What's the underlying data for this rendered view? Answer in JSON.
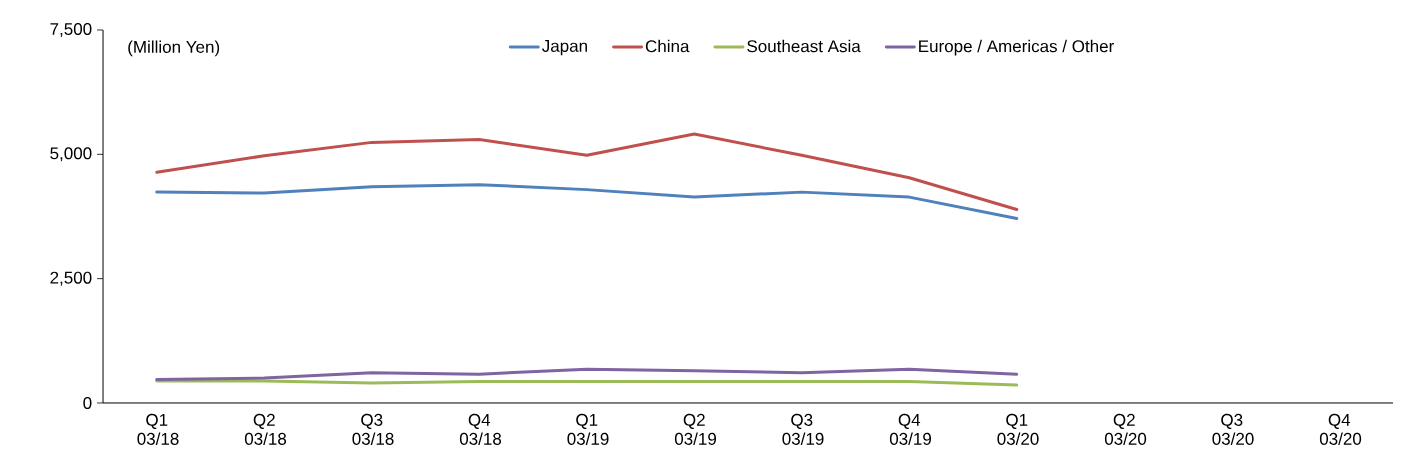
{
  "chart_data": {
    "type": "line",
    "ylabel": "(Million Yen)",
    "categories": [
      "Q1 03/18",
      "Q2 03/18",
      "Q3 03/18",
      "Q4 03/18",
      "Q1 03/19",
      "Q2 03/19",
      "Q3 03/19",
      "Q4 03/19",
      "Q1 03/20",
      "Q2 03/20",
      "Q3 03/20",
      "Q4 03/20"
    ],
    "series": [
      {
        "name": "Japan",
        "color": "#4f81bd",
        "values": [
          4240,
          4220,
          4350,
          4390,
          4290,
          4140,
          4240,
          4140,
          3710,
          null,
          null,
          null
        ]
      },
      {
        "name": "China",
        "color": "#c0504d",
        "values": [
          4640,
          4970,
          5240,
          5300,
          4980,
          5410,
          4980,
          4530,
          3890,
          null,
          null,
          null
        ]
      },
      {
        "name": "Southeast Asia",
        "color": "#9bbb59",
        "values": [
          440,
          440,
          400,
          430,
          430,
          430,
          430,
          430,
          360,
          null,
          null,
          null
        ]
      },
      {
        "name": "Europe / Americas / Other",
        "color": "#8064a2",
        "values": [
          470,
          500,
          610,
          580,
          680,
          650,
          610,
          680,
          580,
          null,
          null,
          null
        ]
      }
    ],
    "ylim": [
      0,
      7500
    ],
    "yticks": [
      {
        "value": 0,
        "label": "0"
      },
      {
        "value": 2500,
        "label": "2,500"
      },
      {
        "value": 5000,
        "label": "5,000"
      },
      {
        "value": 7500,
        "label": "7,500"
      }
    ],
    "legend": "top",
    "grid": false,
    "marker": "none",
    "line_style": "solid"
  }
}
